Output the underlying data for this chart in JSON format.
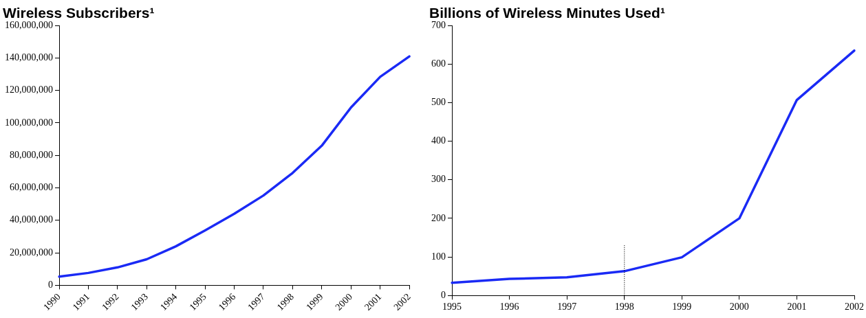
{
  "chart_data": [
    {
      "type": "line",
      "title": "Wireless Subscribers¹",
      "categories": [
        "1990",
        "1991",
        "1992",
        "1993",
        "1994",
        "1995",
        "1996",
        "1997",
        "1998",
        "1999",
        "2000",
        "2001",
        "2002"
      ],
      "series": [
        {
          "color": "#1a2af5",
          "values": [
            5300000,
            7600000,
            11000000,
            16000000,
            24000000,
            33800000,
            44000000,
            55300000,
            69200000,
            86000000,
            109500000,
            128400000,
            141000000
          ]
        }
      ],
      "ylim": [
        0,
        160000000
      ],
      "yticks": [
        {
          "value": 0,
          "label": "0"
        },
        {
          "value": 20000000,
          "label": "20,000,000"
        },
        {
          "value": 40000000,
          "label": "40,000,000"
        },
        {
          "value": 60000000,
          "label": "60,000,000"
        },
        {
          "value": 80000000,
          "label": "80,000,000"
        },
        {
          "value": 100000000,
          "label": "100,000,000"
        },
        {
          "value": 120000000,
          "label": "120,000,000"
        },
        {
          "value": 140000000,
          "label": "140,000,000"
        },
        {
          "value": 160000000,
          "label": "160,000,000"
        }
      ],
      "grid": false,
      "legend": false,
      "marker": "none",
      "line_style": "solid"
    },
    {
      "type": "line",
      "title": "Billions of Wireless Minutes Used¹",
      "categories": [
        "1995",
        "1996",
        "1997",
        "1998",
        "1999",
        "2000",
        "2001",
        "2002"
      ],
      "series": [
        {
          "color": "#1a2af5",
          "values": [
            33,
            43,
            47,
            63,
            99,
            200,
            507,
            635
          ]
        }
      ],
      "ylim": [
        0,
        700
      ],
      "yticks": [
        0,
        100,
        200,
        300,
        400,
        500,
        600,
        700
      ],
      "ref_lines": [
        {
          "axis": "x",
          "value": "1998",
          "color": "#000000",
          "line_style": "dotted"
        }
      ],
      "grid": false,
      "legend": false,
      "marker": "none",
      "line_style": "solid"
    }
  ]
}
